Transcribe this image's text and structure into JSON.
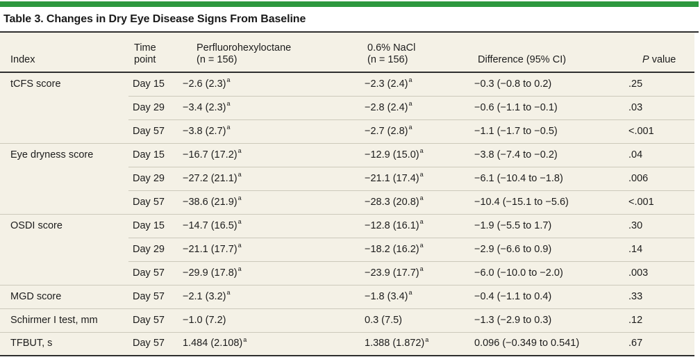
{
  "title": "Table 3. Changes in Dry Eye Disease Signs From Baseline",
  "colors": {
    "accent_bar": "#2d983e",
    "table_bg": "#f4f1e6",
    "rule_dark": "#2e2e2e",
    "row_separator": "#ccc9bb",
    "text": "#1c1c1c"
  },
  "header": {
    "index": "Index",
    "time_line1": "Time",
    "time_line2": "point",
    "drug_line1": "Perfluorohexyloctane",
    "drug_line2": "(n = 156)",
    "nacl_line1": "0.6% NaCl",
    "nacl_line2": "(n = 156)",
    "difference": "Difference (95% CI)",
    "p_italic": "P",
    "p_rest": " value"
  },
  "rows": [
    {
      "index": "tCFS score",
      "time": "Day 15",
      "drug": "−2.6 (2.3)",
      "drug_sup": "a",
      "nacl": "−2.3 (2.4)",
      "nacl_sup": "a",
      "diff": "−0.3 (−0.8 to 0.2)",
      "p": ".25"
    },
    {
      "time": "Day 29",
      "drug": "−3.4 (2.3)",
      "drug_sup": "a",
      "nacl": "−2.8 (2.4)",
      "nacl_sup": "a",
      "diff": "−0.6 (−1.1 to −0.1)",
      "p": ".03"
    },
    {
      "time": "Day 57",
      "drug": "−3.8 (2.7)",
      "drug_sup": "a",
      "nacl": "−2.7 (2.8)",
      "nacl_sup": "a",
      "diff": "−1.1 (−1.7 to −0.5)",
      "p": "<.001"
    },
    {
      "index": "Eye dryness score",
      "time": "Day 15",
      "drug": "−16.7 (17.2)",
      "drug_sup": "a",
      "nacl": "−12.9 (15.0)",
      "nacl_sup": "a",
      "diff": "−3.8 (−7.4 to −0.2)",
      "p": ".04"
    },
    {
      "time": "Day 29",
      "drug": "−27.2 (21.1)",
      "drug_sup": "a",
      "nacl": "−21.1 (17.4)",
      "nacl_sup": "a",
      "diff": "−6.1 (−10.4 to −1.8)",
      "p": ".006"
    },
    {
      "time": "Day 57",
      "drug": "−38.6 (21.9)",
      "drug_sup": "a",
      "nacl": "−28.3 (20.8)",
      "nacl_sup": "a",
      "diff": "−10.4 (−15.1 to −5.6)",
      "p": "<.001"
    },
    {
      "index": "OSDI score",
      "time": "Day 15",
      "drug": "−14.7 (16.5)",
      "drug_sup": "a",
      "nacl": "−12.8 (16.1)",
      "nacl_sup": "a",
      "diff": "−1.9 (−5.5 to 1.7)",
      "p": ".30"
    },
    {
      "time": "Day 29",
      "drug": "−21.1 (17.7)",
      "drug_sup": "a",
      "nacl": "−18.2 (16.2)",
      "nacl_sup": "a",
      "diff": "−2.9 (−6.6 to 0.9)",
      "p": ".14"
    },
    {
      "time": "Day 57",
      "drug": "−29.9 (17.8)",
      "drug_sup": "a",
      "nacl": "−23.9 (17.7)",
      "nacl_sup": "a",
      "diff": "−6.0 (−10.0 to −2.0)",
      "p": ".003"
    },
    {
      "index": "MGD score",
      "time": "Day 57",
      "drug": "−2.1 (3.2)",
      "drug_sup": "a",
      "nacl": "−1.8 (3.4)",
      "nacl_sup": "a",
      "diff": "−0.4 (−1.1 to 0.4)",
      "p": ".33"
    },
    {
      "index": "Schirmer I test, mm",
      "time": "Day 57",
      "drug": "−1.0 (7.2)",
      "nacl": "0.3 (7.5)",
      "diff": "−1.3 (−2.9 to 0.3)",
      "p": ".12"
    },
    {
      "index": "TFBUT, s",
      "time": "Day 57",
      "drug": "1.484 (2.108)",
      "drug_sup": "a",
      "nacl": "1.388 (1.872)",
      "nacl_sup": "a",
      "diff": "0.096 (−0.349 to 0.541)",
      "p": ".67"
    }
  ]
}
